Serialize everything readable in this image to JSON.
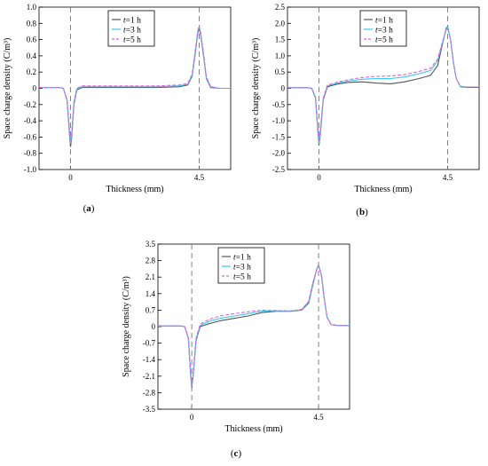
{
  "chart_data": [
    {
      "panel": "(a)",
      "type": "line",
      "xlabel": "Thickness (mm)",
      "ylabel": "Space charge density (C/m³)",
      "ylim": [
        -1.0,
        1.0
      ],
      "yticks": [
        "1.0",
        "0.8",
        "0.6",
        "0.4",
        "0.2",
        "0",
        "-0.2",
        "-0.4",
        "-0.6",
        "-0.8",
        "-1.0"
      ],
      "xlim": [
        -1.1,
        5.6
      ],
      "xticks": [
        "0",
        "4.5"
      ],
      "vlines": [
        0,
        4.5
      ],
      "legend": "top-left",
      "grid": false,
      "series": [
        {
          "name": "t=1 h",
          "color": "#555555",
          "dash": false,
          "x": [
            -1.1,
            -0.4,
            -0.25,
            -0.12,
            -0.04,
            0,
            0.04,
            0.12,
            0.22,
            0.4,
            1.0,
            2.0,
            3.0,
            3.8,
            4.1,
            4.25,
            4.35,
            4.45,
            4.5,
            4.55,
            4.65,
            4.75,
            4.9,
            5.2,
            5.6
          ],
          "y": [
            0.01,
            0.01,
            0,
            -0.15,
            -0.55,
            -0.72,
            -0.6,
            -0.2,
            -0.02,
            0.01,
            0.01,
            0.01,
            0.01,
            0.02,
            0.04,
            0.15,
            0.4,
            0.68,
            0.74,
            0.66,
            0.4,
            0.12,
            0.01,
            0,
            0
          ]
        },
        {
          "name": "t=3 h",
          "color": "#33ccee",
          "dash": false,
          "x": [
            -1.1,
            -0.4,
            -0.25,
            -0.12,
            -0.04,
            0,
            0.04,
            0.12,
            0.22,
            0.4,
            1.0,
            2.0,
            3.0,
            3.8,
            4.1,
            4.25,
            4.35,
            4.45,
            4.5,
            4.55,
            4.65,
            4.75,
            4.9,
            5.2,
            5.6
          ],
          "y": [
            0.01,
            0.01,
            0,
            -0.15,
            -0.52,
            -0.68,
            -0.57,
            -0.18,
            -0.01,
            0.02,
            0.02,
            0.02,
            0.02,
            0.03,
            0.05,
            0.16,
            0.42,
            0.7,
            0.76,
            0.68,
            0.42,
            0.13,
            0.02,
            0,
            0
          ]
        },
        {
          "name": "t=5 h",
          "color": "#dd66dd",
          "dash": true,
          "x": [
            -1.1,
            -0.4,
            -0.25,
            -0.12,
            -0.04,
            0,
            0.04,
            0.12,
            0.22,
            0.4,
            1.0,
            2.0,
            3.0,
            3.8,
            4.1,
            4.25,
            4.35,
            4.45,
            4.5,
            4.55,
            4.65,
            4.75,
            4.9,
            5.2,
            5.6
          ],
          "y": [
            0.01,
            0.01,
            0,
            -0.14,
            -0.5,
            -0.66,
            -0.55,
            -0.17,
            0,
            0.03,
            0.03,
            0.03,
            0.03,
            0.04,
            0.06,
            0.17,
            0.43,
            0.71,
            0.77,
            0.69,
            0.43,
            0.14,
            0.02,
            0,
            0
          ]
        }
      ]
    },
    {
      "panel": "(b)",
      "type": "line",
      "xlabel": "Thickness (mm)",
      "ylabel": "Space charge density (C/m³)",
      "ylim": [
        -2.5,
        2.5
      ],
      "yticks": [
        "2.5",
        "2.0",
        "1.5",
        "1.0",
        "0.5",
        "0",
        "-0.5",
        "-1.0",
        "-1.5",
        "-2.0",
        "-2.5"
      ],
      "xlim": [
        -1.1,
        5.6
      ],
      "xticks": [
        "0",
        "4.5"
      ],
      "vlines": [
        0,
        4.5
      ],
      "legend": "top-left",
      "grid": false,
      "series": [
        {
          "name": "t=1 h",
          "color": "#555555",
          "dash": false,
          "x": [
            -1.1,
            -0.4,
            -0.25,
            -0.12,
            -0.04,
            0,
            0.05,
            0.15,
            0.3,
            0.6,
            1.0,
            1.5,
            2.0,
            2.5,
            3.0,
            3.5,
            3.9,
            4.15,
            4.3,
            4.45,
            4.5,
            4.6,
            4.7,
            4.8,
            4.95,
            5.2,
            5.6
          ],
          "y": [
            0.02,
            0.02,
            0,
            -0.3,
            -1.3,
            -1.75,
            -1.4,
            -0.35,
            0.05,
            0.12,
            0.18,
            0.2,
            0.16,
            0.14,
            0.2,
            0.3,
            0.4,
            0.7,
            1.3,
            1.85,
            1.9,
            1.5,
            0.8,
            0.3,
            0.05,
            0.03,
            0.03
          ]
        },
        {
          "name": "t=3 h",
          "color": "#33ccee",
          "dash": false,
          "x": [
            -1.1,
            -0.4,
            -0.25,
            -0.12,
            -0.04,
            0,
            0.05,
            0.15,
            0.3,
            0.6,
            1.0,
            1.5,
            2.0,
            2.5,
            3.0,
            3.5,
            3.9,
            4.15,
            4.3,
            4.45,
            4.5,
            4.6,
            4.7,
            4.8,
            4.95,
            5.2,
            5.6
          ],
          "y": [
            0.02,
            0.02,
            0,
            -0.28,
            -1.25,
            -1.7,
            -1.35,
            -0.32,
            0.08,
            0.15,
            0.22,
            0.28,
            0.3,
            0.3,
            0.35,
            0.45,
            0.55,
            0.85,
            1.35,
            1.82,
            1.88,
            1.5,
            0.8,
            0.3,
            0.06,
            0.04,
            0.04
          ]
        },
        {
          "name": "t=5 h",
          "color": "#dd66dd",
          "dash": true,
          "x": [
            -1.1,
            -0.4,
            -0.25,
            -0.12,
            -0.04,
            0,
            0.05,
            0.15,
            0.3,
            0.6,
            1.0,
            1.5,
            2.0,
            2.5,
            3.0,
            3.5,
            3.9,
            4.15,
            4.3,
            4.45,
            4.5,
            4.6,
            4.7,
            4.8,
            4.95,
            5.2,
            5.6
          ],
          "y": [
            0.02,
            0.02,
            0,
            -0.27,
            -1.2,
            -1.65,
            -1.3,
            -0.3,
            0.1,
            0.18,
            0.26,
            0.33,
            0.37,
            0.38,
            0.42,
            0.52,
            0.62,
            0.9,
            1.38,
            1.8,
            1.86,
            1.5,
            0.8,
            0.3,
            0.06,
            0.04,
            0.04
          ]
        }
      ]
    },
    {
      "panel": "(c)",
      "type": "line",
      "xlabel": "Thickness (mm)",
      "ylabel": "Space charge density (C/m³)",
      "ylim": [
        -3.5,
        3.5
      ],
      "yticks": [
        "3.5",
        "2.8",
        "2.1",
        "1.4",
        "0.7",
        "0",
        "-0.7",
        "-1.4",
        "-2.1",
        "-2.8",
        "-3.5"
      ],
      "xlim": [
        -1.2,
        5.6
      ],
      "xticks": [
        "0",
        "4.5"
      ],
      "vlines": [
        0,
        4.5
      ],
      "legend": "top-left",
      "grid": false,
      "series": [
        {
          "name": "t=1 h",
          "color": "#555555",
          "dash": false,
          "x": [
            -1.2,
            -0.4,
            -0.25,
            -0.12,
            -0.04,
            0,
            0.05,
            0.15,
            0.3,
            0.6,
            1.0,
            1.5,
            2.0,
            2.5,
            3.0,
            3.5,
            3.9,
            4.15,
            4.3,
            4.45,
            4.5,
            4.6,
            4.7,
            4.8,
            4.95,
            5.2,
            5.6
          ],
          "y": [
            0.03,
            0.03,
            0,
            -0.5,
            -2.0,
            -2.6,
            -2.1,
            -0.6,
            0,
            0.12,
            0.25,
            0.35,
            0.45,
            0.6,
            0.65,
            0.65,
            0.7,
            1.0,
            1.8,
            2.5,
            2.6,
            2.2,
            1.2,
            0.4,
            0.08,
            0.05,
            0.05
          ]
        },
        {
          "name": "t=3 h",
          "color": "#33ccee",
          "dash": false,
          "x": [
            -1.2,
            -0.4,
            -0.25,
            -0.12,
            -0.04,
            0,
            0.05,
            0.15,
            0.3,
            0.6,
            1.0,
            1.5,
            2.0,
            2.5,
            3.0,
            3.5,
            3.9,
            4.15,
            4.3,
            4.45,
            4.5,
            4.6,
            4.7,
            4.8,
            4.95,
            5.2,
            5.6
          ],
          "y": [
            0.03,
            0.03,
            0,
            -0.48,
            -1.95,
            -2.55,
            -2.05,
            -0.55,
            0.05,
            0.22,
            0.35,
            0.45,
            0.55,
            0.66,
            0.67,
            0.66,
            0.72,
            1.05,
            1.85,
            2.5,
            2.58,
            2.2,
            1.2,
            0.4,
            0.08,
            0.05,
            0.05
          ]
        },
        {
          "name": "t=5 h",
          "color": "#dd66dd",
          "dash": true,
          "x": [
            -1.2,
            -0.4,
            -0.25,
            -0.12,
            -0.04,
            0,
            0.05,
            0.15,
            0.3,
            0.6,
            1.0,
            1.5,
            2.0,
            2.5,
            3.0,
            3.5,
            3.9,
            4.15,
            4.3,
            4.45,
            4.5,
            4.6,
            4.7,
            4.8,
            4.95,
            5.2,
            5.6
          ],
          "y": [
            0.03,
            0.03,
            0,
            -0.46,
            -1.9,
            -2.5,
            -2.0,
            -0.5,
            0.1,
            0.3,
            0.45,
            0.55,
            0.63,
            0.7,
            0.68,
            0.67,
            0.73,
            1.08,
            1.88,
            2.48,
            2.56,
            2.2,
            1.2,
            0.4,
            0.08,
            0.05,
            0.05
          ]
        }
      ]
    }
  ]
}
